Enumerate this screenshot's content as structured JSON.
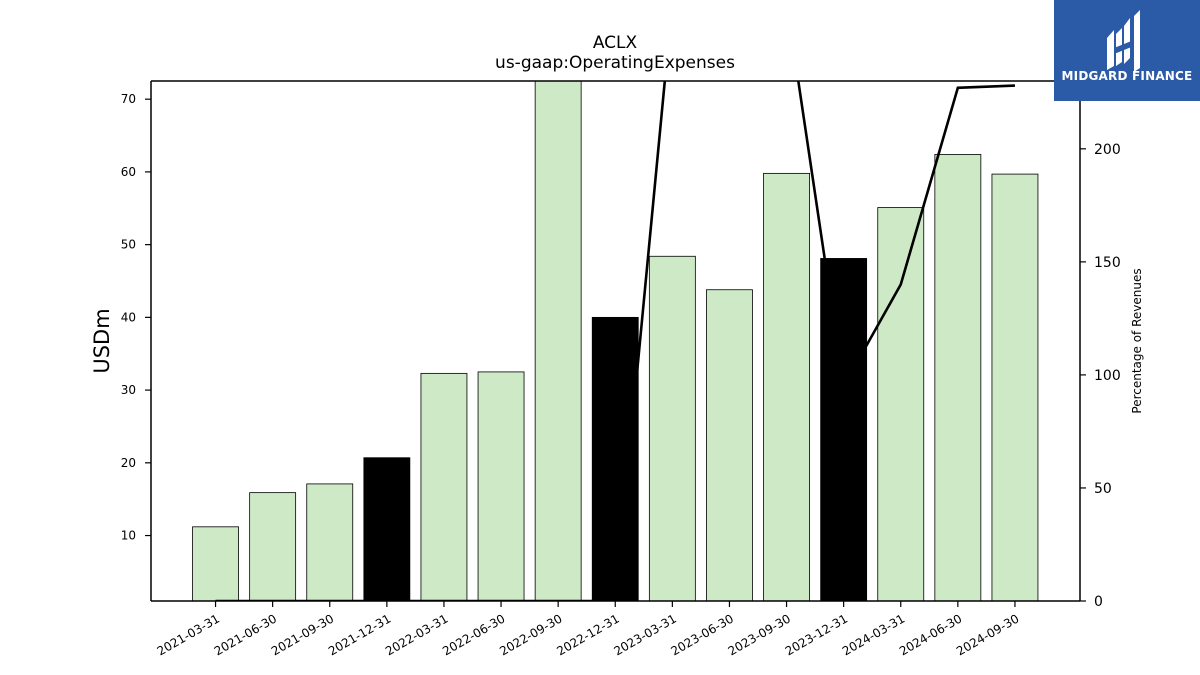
{
  "logo": {
    "text": "MIDGARD FINANCE",
    "icon": "midgard-logo-icon",
    "background": "#2b5aa6"
  },
  "chart_data": {
    "type": "bar",
    "title": "ACLX",
    "subtitle": "us-gaap:OperatingExpenses",
    "ylabel": "USDm",
    "y2label": "Percentage of Revenues",
    "ylim": [
      1,
      72.5
    ],
    "y2lim": [
      0,
      230
    ],
    "yticks": [
      10,
      20,
      30,
      40,
      50,
      60,
      70
    ],
    "y2ticks": [
      0,
      50,
      100,
      150,
      200
    ],
    "categories": [
      "2021-03-31",
      "2021-06-30",
      "2021-09-30",
      "2021-12-31",
      "2022-03-31",
      "2022-06-30",
      "2022-09-30",
      "2022-12-31",
      "2023-03-31",
      "2023-06-30",
      "2023-09-30",
      "2023-12-31",
      "2024-03-31",
      "2024-06-30",
      "2024-09-30"
    ],
    "series": [
      {
        "values": [
          11.2,
          15.9,
          17.1,
          20.7,
          32.3,
          32.5,
          73.0,
          40.0,
          48.4,
          43.8,
          59.8,
          48.1,
          55.1,
          62.4,
          59.7
        ],
        "highlight": [
          false,
          false,
          false,
          true,
          false,
          false,
          false,
          true,
          false,
          false,
          false,
          true,
          false,
          false,
          false
        ]
      },
      {
        "axis": "right",
        "type": "line",
        "values": [
          0,
          0,
          0,
          0,
          0,
          0,
          0,
          0,
          265,
          null,
          265,
          95,
          140,
          227,
          228
        ]
      }
    ],
    "colors": {
      "bar": "#cde9c5",
      "highlight": "#000000",
      "line": "#000000"
    },
    "grid": false
  }
}
